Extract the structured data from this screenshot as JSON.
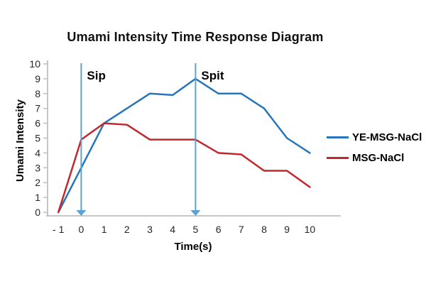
{
  "title": "Umami Intensity Time Response Diagram",
  "colors": {
    "background": "#ffffff",
    "axis_line": "#bfbfbf",
    "tick_text": "#262626",
    "title_text": "#111111",
    "annotation_arrow": "#5aa2d5",
    "series_blue": "#2776bc",
    "series_red": "#c0282d"
  },
  "legend": {
    "items": [
      {
        "label": "YE-MSG-NaCl",
        "color": "#2776bc"
      },
      {
        "label": "MSG-NaCl",
        "color": "#c0282d"
      }
    ]
  },
  "chart_data": {
    "type": "line",
    "title": "Umami Intensity Time Response Diagram",
    "xlabel": "Time(s)",
    "ylabel": "Umami Intensity",
    "x": [
      -1,
      0,
      1,
      2,
      3,
      4,
      5,
      6,
      7,
      8,
      9,
      10
    ],
    "x_tick_labels": [
      "- 1",
      "0",
      "1",
      "2",
      "3",
      "4",
      "5",
      "6",
      "7",
      "8",
      "9",
      "10"
    ],
    "y_ticks": [
      0,
      1,
      2,
      3,
      4,
      5,
      6,
      7,
      8,
      9,
      10
    ],
    "ylim": [
      0,
      10
    ],
    "xlim_categories": [
      -1,
      10
    ],
    "grid": false,
    "legend_position": "right",
    "series": [
      {
        "name": "YE-MSG-NaCl",
        "color": "#2776bc",
        "values": [
          0,
          3,
          6,
          7,
          8,
          7.9,
          9,
          8,
          8,
          7,
          5,
          4
        ]
      },
      {
        "name": "MSG-NaCl",
        "color": "#c0282d",
        "values": [
          0,
          4.9,
          6,
          5.9,
          4.9,
          4.9,
          4.9,
          4,
          3.9,
          2.8,
          2.8,
          1.7
        ]
      }
    ],
    "annotations": [
      {
        "label": "Sip",
        "x": 0
      },
      {
        "label": "Spit",
        "x": 5
      }
    ]
  }
}
